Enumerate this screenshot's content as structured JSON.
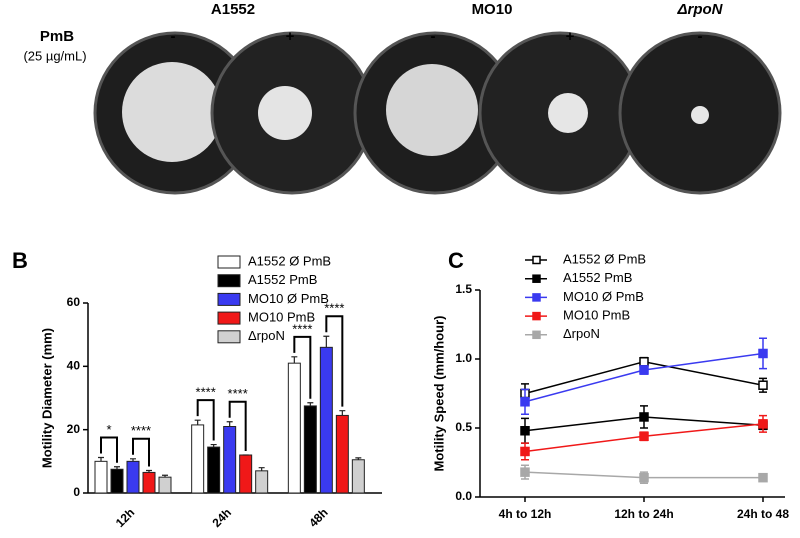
{
  "photo_panel": {
    "treatment_label": "PmB",
    "concentration": "(25 µg/mL)",
    "strains": [
      {
        "name": "A1552",
        "conditions": [
          "-",
          "+"
        ]
      },
      {
        "name": "MO10",
        "conditions": [
          "-",
          "+"
        ]
      },
      {
        "name": "ΔrpoN",
        "conditions": [
          "-"
        ]
      }
    ]
  },
  "chart_data": [
    {
      "type": "bar",
      "panel": "B",
      "y_label": "Motility Diameter (mm)",
      "categories": [
        "12h",
        "24h",
        "48h"
      ],
      "series": [
        {
          "name": "A1552 Ø PmB",
          "color": "#ffffff",
          "values": [
            10,
            21.5,
            41
          ],
          "errors": [
            1.2,
            1.5,
            2
          ]
        },
        {
          "name": "A1552 PmB",
          "color": "#000000",
          "values": [
            7.5,
            14.5,
            27.5
          ],
          "errors": [
            0.8,
            0.8,
            1
          ]
        },
        {
          "name": "MO10 Ø PmB",
          "color": "#3a3af0",
          "values": [
            10,
            21,
            46
          ],
          "errors": [
            0.8,
            1.5,
            3.5
          ]
        },
        {
          "name": "MO10 PmB",
          "color": "#f01818",
          "values": [
            6.5,
            12,
            24.5
          ],
          "errors": [
            0.6,
            0,
            1.5
          ]
        },
        {
          "name": "ΔrpoN",
          "color": "#d0d0d0",
          "values": [
            5,
            7,
            10.5
          ],
          "errors": [
            0.6,
            1,
            0.6
          ]
        }
      ],
      "significance": [
        [
          "*",
          "****"
        ],
        [
          "****",
          "****"
        ],
        [
          "****",
          "****"
        ]
      ],
      "ylim": [
        0,
        60
      ],
      "yticks": [
        0,
        20,
        40,
        60
      ]
    },
    {
      "type": "line",
      "panel": "C",
      "y_label": "Motility Speed (mm/hour)",
      "categories": [
        "4h to 12h",
        "12h to 24h",
        "24h to 48"
      ],
      "series": [
        {
          "name": "A1552 Ø PmB",
          "color": "#000000",
          "marker": "open-square",
          "values": [
            0.75,
            0.98,
            0.81
          ],
          "errors": [
            0.07,
            0.03,
            0.05
          ]
        },
        {
          "name": "A1552 PmB",
          "color": "#000000",
          "marker": "square",
          "values": [
            0.48,
            0.58,
            0.52
          ],
          "errors": [
            0.09,
            0.08,
            0.03
          ]
        },
        {
          "name": "MO10 Ø PmB",
          "color": "#3a3af0",
          "marker": "square",
          "values": [
            0.69,
            0.92,
            1.04
          ],
          "errors": [
            0.09,
            0.03,
            0.11
          ]
        },
        {
          "name": "MO10 PmB",
          "color": "#f01818",
          "marker": "square",
          "values": [
            0.33,
            0.44,
            0.53
          ],
          "errors": [
            0.06,
            0.03,
            0.06
          ]
        },
        {
          "name": "ΔrpoN",
          "color": "#a8a8a8",
          "marker": "square",
          "values": [
            0.18,
            0.14,
            0.14
          ],
          "errors": [
            0.05,
            0.04,
            0.02
          ]
        }
      ],
      "ylim": [
        0,
        1.5
      ],
      "yticks": [
        {
          "value": 0,
          "label": "0.0"
        },
        {
          "value": 0.5,
          "label": "0.5"
        },
        {
          "value": 1,
          "label": "1.0"
        },
        {
          "value": 1.5,
          "label": "1.5"
        }
      ]
    }
  ]
}
